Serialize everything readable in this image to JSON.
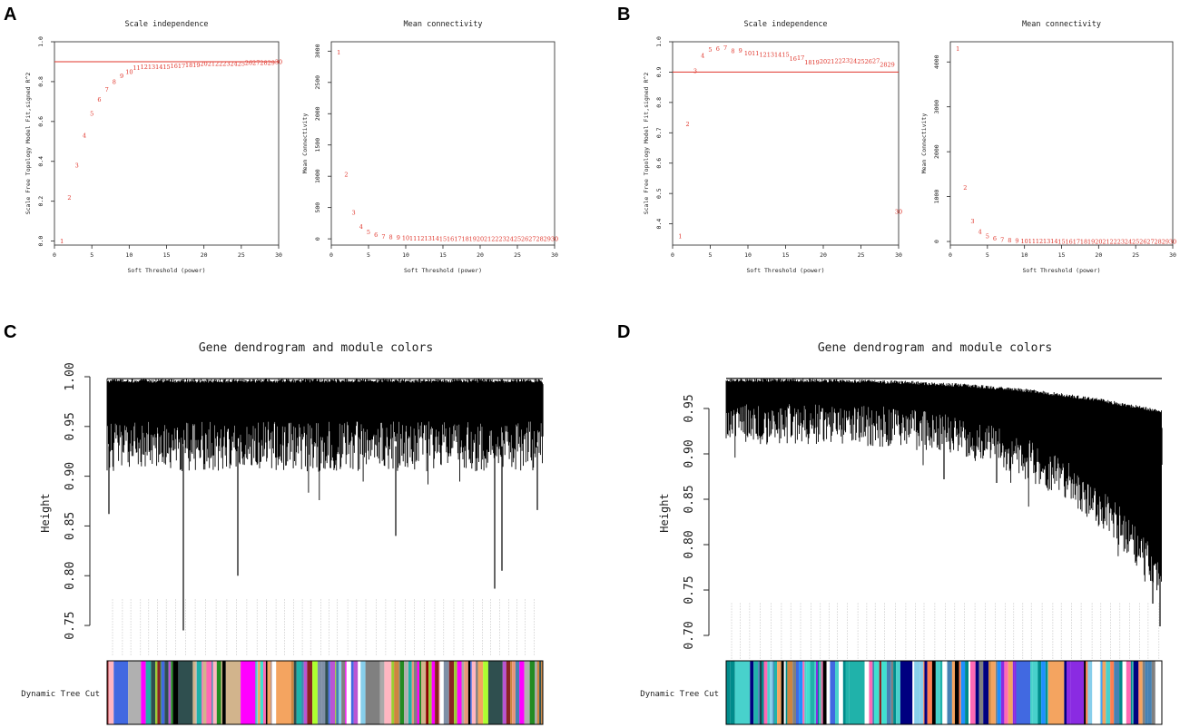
{
  "panel_labels": [
    "A",
    "B",
    "C",
    "D"
  ],
  "colors": {
    "threshold_line": "#e0352b",
    "point_label": "#e0352b",
    "axis": "#222222"
  },
  "chart_data": [
    {
      "id": "A1",
      "type": "scatter",
      "title": "Scale independence",
      "xlabel": "Soft Threshold (power)",
      "ylabel": "Scale Free Topology Model Fit,signed R^2",
      "xlim": [
        0,
        30
      ],
      "ylim": [
        -0.02,
        1.0
      ],
      "xticks": [
        0,
        5,
        10,
        15,
        20,
        25,
        30
      ],
      "yticks": [
        0.0,
        0.2,
        0.4,
        0.6,
        0.8,
        1.0
      ],
      "ytick_labels": [
        "0.0",
        "0.2",
        "0.4",
        "0.6",
        "0.8",
        "1.0"
      ],
      "hline": 0.9,
      "x": [
        1,
        2,
        3,
        4,
        5,
        6,
        7,
        8,
        9,
        10,
        11,
        12,
        13,
        14,
        15,
        16,
        17,
        18,
        19,
        20,
        21,
        22,
        23,
        24,
        25,
        26,
        27,
        28,
        29,
        30
      ],
      "y": [
        0.0,
        0.22,
        0.38,
        0.53,
        0.64,
        0.71,
        0.76,
        0.8,
        0.83,
        0.85,
        0.87,
        0.875,
        0.875,
        0.875,
        0.875,
        0.88,
        0.88,
        0.885,
        0.885,
        0.89,
        0.89,
        0.89,
        0.89,
        0.89,
        0.89,
        0.895,
        0.895,
        0.895,
        0.895,
        0.9
      ],
      "labels": [
        "1",
        "2",
        "3",
        "4",
        "5",
        "6",
        "7",
        "8",
        "9",
        "10",
        "11",
        "12",
        "13",
        "14",
        "15",
        "16",
        "17",
        "18",
        "19",
        "20",
        "21",
        "22",
        "23",
        "24",
        "25",
        "26",
        "27",
        "28",
        "29",
        "30"
      ]
    },
    {
      "id": "A2",
      "type": "scatter",
      "title": "Mean connectivity",
      "xlabel": "Soft Threshold (power)",
      "ylabel": "Mean Connectivity",
      "xlim": [
        0,
        30
      ],
      "ylim": [
        -100,
        3150
      ],
      "xticks": [
        0,
        5,
        10,
        15,
        20,
        25,
        30
      ],
      "yticks": [
        0,
        500,
        1000,
        1500,
        2000,
        2500,
        3000
      ],
      "ytick_labels": [
        "0",
        "500",
        "1000",
        "1500",
        "2000",
        "2500",
        "3000"
      ],
      "x": [
        1,
        2,
        3,
        4,
        5,
        6,
        7,
        8,
        9,
        10,
        11,
        12,
        13,
        14,
        15,
        16,
        17,
        18,
        19,
        20,
        21,
        22,
        23,
        24,
        25,
        26,
        27,
        28,
        29,
        30
      ],
      "y": [
        2980,
        1030,
        420,
        200,
        110,
        65,
        40,
        28,
        20,
        15,
        11,
        9,
        7,
        6,
        5,
        4,
        3,
        3,
        2,
        2,
        2,
        1,
        1,
        1,
        1,
        1,
        1,
        1,
        1,
        1
      ],
      "labels": [
        "1",
        "2",
        "3",
        "4",
        "5",
        "6",
        "7",
        "8",
        "9",
        "10",
        "11",
        "12",
        "13",
        "14",
        "15",
        "16",
        "17",
        "18",
        "19",
        "20",
        "21",
        "22",
        "23",
        "24",
        "25",
        "26",
        "27",
        "28",
        "29",
        "30"
      ]
    },
    {
      "id": "B1",
      "type": "scatter",
      "title": "Scale independence",
      "xlabel": "Soft Threshold (power)",
      "ylabel": "Scale Free Topology Model Fit,signed R^2",
      "xlim": [
        0,
        30
      ],
      "ylim": [
        0.33,
        1.0
      ],
      "xticks": [
        0,
        5,
        10,
        15,
        20,
        25,
        30
      ],
      "yticks": [
        0.4,
        0.5,
        0.6,
        0.7,
        0.8,
        0.9,
        1.0
      ],
      "ytick_labels": [
        "0.4",
        "0.5",
        "0.6",
        "0.7",
        "0.8",
        "0.9",
        "1.0"
      ],
      "hline": 0.9,
      "x": [
        1,
        2,
        3,
        4,
        5,
        6,
        7,
        8,
        9,
        10,
        11,
        12,
        13,
        14,
        15,
        16,
        17,
        18,
        19,
        20,
        21,
        22,
        23,
        24,
        25,
        26,
        27,
        28,
        29,
        30
      ],
      "y": [
        0.36,
        0.73,
        0.905,
        0.955,
        0.975,
        0.978,
        0.98,
        0.97,
        0.972,
        0.962,
        0.962,
        0.958,
        0.958,
        0.958,
        0.958,
        0.945,
        0.948,
        0.932,
        0.932,
        0.935,
        0.935,
        0.937,
        0.938,
        0.937,
        0.935,
        0.935,
        0.937,
        0.925,
        0.925,
        0.44
      ],
      "labels": [
        "1",
        "2",
        "3",
        "4",
        "5",
        "6",
        "7",
        "8",
        "9",
        "10",
        "11",
        "12",
        "13",
        "14",
        "15",
        "16",
        "17",
        "18",
        "19",
        "20",
        "21",
        "22",
        "23",
        "24",
        "25",
        "26",
        "27",
        "28",
        "29",
        "30"
      ]
    },
    {
      "id": "B2",
      "type": "scatter",
      "title": "Mean connectivity",
      "xlabel": "Soft Threshold (power)",
      "ylabel": "Mean Connectivity",
      "xlim": [
        0,
        30
      ],
      "ylim": [
        -80,
        4450
      ],
      "xticks": [
        0,
        5,
        10,
        15,
        20,
        25,
        30
      ],
      "yticks": [
        0,
        1000,
        2000,
        3000,
        4000
      ],
      "ytick_labels": [
        "0",
        "1000",
        "2000",
        "3000",
        "4000"
      ],
      "x": [
        1,
        2,
        3,
        4,
        5,
        6,
        7,
        8,
        9,
        10,
        11,
        12,
        13,
        14,
        15,
        16,
        17,
        18,
        19,
        20,
        21,
        22,
        23,
        24,
        25,
        26,
        27,
        28,
        29,
        30
      ],
      "y": [
        4300,
        1200,
        460,
        220,
        120,
        70,
        45,
        30,
        22,
        16,
        12,
        10,
        8,
        6,
        5,
        4,
        3,
        3,
        2,
        2,
        2,
        1,
        1,
        1,
        1,
        1,
        1,
        1,
        1,
        1
      ],
      "labels": [
        "1",
        "2",
        "3",
        "4",
        "5",
        "6",
        "7",
        "8",
        "9",
        "10",
        "11",
        "12",
        "13",
        "14",
        "15",
        "16",
        "17",
        "18",
        "19",
        "20",
        "21",
        "22",
        "23",
        "24",
        "25",
        "26",
        "27",
        "28",
        "29",
        "30"
      ]
    },
    {
      "id": "C",
      "type": "dendrogram",
      "title": "Gene dendrogram and module colors",
      "ylabel": "Height",
      "ylim": [
        0.74,
        1.0
      ],
      "yticks": [
        0.75,
        0.8,
        0.85,
        0.9,
        0.95,
        1.0
      ],
      "ytick_labels": [
        "0.75",
        "0.80",
        "0.85",
        "0.90",
        "0.95",
        "1.00"
      ],
      "color_row_label": "Dynamic Tree Cut",
      "module_colors": [
        "#808080",
        "#b08f8a",
        "#7f8fa6",
        "#4682b4",
        "#9acd32",
        "#b0b0b0",
        "#cd853f",
        "#ffb6c1",
        "#ffffff",
        "#8b2323",
        "#a9a9a9",
        "#008b8b",
        "#ff69b4",
        "#adff2f",
        "#228b22",
        "#2f4f4f",
        "#4169e1",
        "#87ceeb",
        "#d2b48c",
        "#f4a460",
        "#8b0000",
        "#e9967a",
        "#20b2aa",
        "#ba55d3",
        "#40e0d0",
        "#ff00ff",
        "#000000"
      ]
    },
    {
      "id": "D",
      "type": "dendrogram",
      "title": "Gene dendrogram and module colors",
      "ylabel": "Height",
      "ylim": [
        0.695,
        0.985
      ],
      "yticks": [
        0.7,
        0.75,
        0.8,
        0.85,
        0.9,
        0.95
      ],
      "ytick_labels": [
        "0.70",
        "0.75",
        "0.80",
        "0.85",
        "0.90",
        "0.95"
      ],
      "color_row_label": "Dynamic Tree Cut",
      "module_colors": [
        "#4682b4",
        "#1e90ff",
        "#4169e1",
        "#87ceeb",
        "#008b8b",
        "#20b2aa",
        "#ffffff",
        "#8b2323",
        "#cd853f",
        "#f4a460",
        "#ff7f50",
        "#000080",
        "#8a2be2",
        "#ff69b4",
        "#40e0d0",
        "#48d1cc",
        "#808080",
        "#000000"
      ]
    }
  ]
}
